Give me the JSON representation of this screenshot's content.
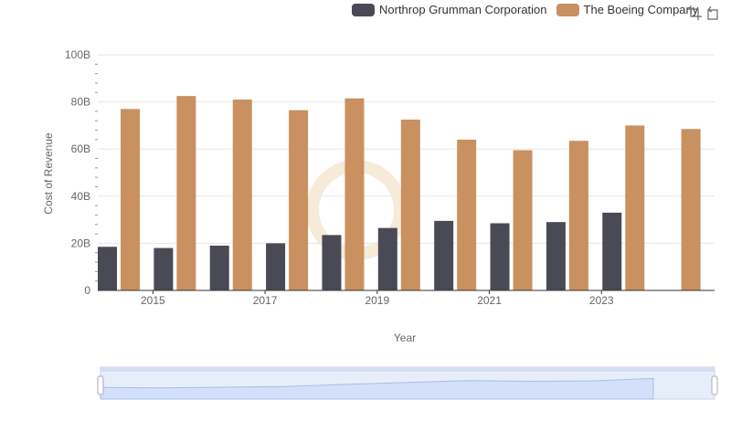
{
  "chart_data": {
    "type": "bar",
    "xlabel": "Year",
    "ylabel": "Cost of Revenue",
    "ylim": [
      0,
      100
    ],
    "y_tick_labels": [
      "0",
      "20B",
      "40B",
      "60B",
      "80B",
      "100B"
    ],
    "x_tick_labels": [
      "2015",
      "2017",
      "2019",
      "2021",
      "2023"
    ],
    "categories": [
      "2014",
      "2015",
      "2016",
      "2017",
      "2018",
      "2019",
      "2020",
      "2021",
      "2022",
      "2023",
      "2024"
    ],
    "series": [
      {
        "name": "Northrop Grumman Corporation",
        "color": "#4a4a56",
        "values": [
          18.5,
          18.0,
          19.0,
          20.0,
          23.5,
          26.5,
          29.5,
          28.5,
          29.0,
          33.0,
          null
        ]
      },
      {
        "name": "The Boeing Company",
        "color": "#c8915f",
        "values": [
          77.0,
          82.5,
          81.0,
          76.5,
          81.5,
          72.5,
          64.0,
          59.5,
          63.5,
          70.0,
          68.5
        ]
      }
    ],
    "grid": true,
    "legend_position": "top-right"
  },
  "toolbox": {
    "icons": [
      "zoom-icon",
      "restore-icon"
    ]
  }
}
